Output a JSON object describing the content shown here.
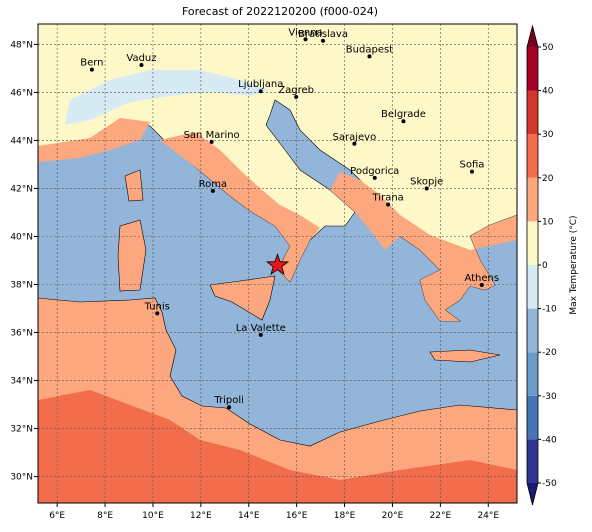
{
  "title": "Forecast of 2022120200 (f000-024)",
  "map": {
    "xlim": [
      5.2,
      25.2
    ],
    "ylim": [
      28.9,
      48.85
    ],
    "xticks": [
      {
        "value": 6,
        "label": "6°E"
      },
      {
        "value": 8,
        "label": "8°E"
      },
      {
        "value": 10,
        "label": "10°E"
      },
      {
        "value": 12,
        "label": "12°E"
      },
      {
        "value": 14,
        "label": "14°E"
      },
      {
        "value": 16,
        "label": "16°E"
      },
      {
        "value": 18,
        "label": "18°E"
      },
      {
        "value": 20,
        "label": "20°E"
      },
      {
        "value": 22,
        "label": "22°E"
      },
      {
        "value": 24,
        "label": "24°E"
      }
    ],
    "yticks": [
      {
        "value": 30,
        "label": "30°N"
      },
      {
        "value": 32,
        "label": "32°N"
      },
      {
        "value": 34,
        "label": "34°N"
      },
      {
        "value": 36,
        "label": "36°N"
      },
      {
        "value": 38,
        "label": "38°N"
      },
      {
        "value": 40,
        "label": "40°N"
      },
      {
        "value": 42,
        "label": "42°N"
      },
      {
        "value": 44,
        "label": "44°N"
      },
      {
        "value": 46,
        "label": "46°N"
      },
      {
        "value": 48,
        "label": "48°N"
      }
    ],
    "grid": true,
    "cities": [
      {
        "name": "Bern",
        "lon": 7.45,
        "lat": 46.95
      },
      {
        "name": "Vaduz",
        "lon": 9.52,
        "lat": 47.14
      },
      {
        "name": "Vienna",
        "lon": 16.37,
        "lat": 48.21
      },
      {
        "name": "Bratislava",
        "lon": 17.1,
        "lat": 48.15
      },
      {
        "name": "Budapest",
        "lon": 19.04,
        "lat": 47.5
      },
      {
        "name": "Ljubljana",
        "lon": 14.5,
        "lat": 46.05
      },
      {
        "name": "Zagreb",
        "lon": 15.98,
        "lat": 45.81
      },
      {
        "name": "Belgrade",
        "lon": 20.46,
        "lat": 44.8
      },
      {
        "name": "San Marino",
        "lon": 12.45,
        "lat": 43.94
      },
      {
        "name": "Sarajevo",
        "lon": 18.41,
        "lat": 43.86
      },
      {
        "name": "Podgorica",
        "lon": 19.26,
        "lat": 42.44
      },
      {
        "name": "Skopje",
        "lon": 21.43,
        "lat": 42.0
      },
      {
        "name": "Sofia",
        "lon": 23.32,
        "lat": 42.7
      },
      {
        "name": "Roma",
        "lon": 12.5,
        "lat": 41.9
      },
      {
        "name": "Tirana",
        "lon": 19.82,
        "lat": 41.33
      },
      {
        "name": "Athens",
        "lon": 23.73,
        "lat": 37.98
      },
      {
        "name": "Tunis",
        "lon": 10.18,
        "lat": 36.8
      },
      {
        "name": "La Valette",
        "lon": 14.5,
        "lat": 35.9
      },
      {
        "name": "Tripoli",
        "lon": 13.18,
        "lat": 32.89
      }
    ],
    "marker": {
      "lon": 15.2,
      "lat": 38.8,
      "color": "#e8141e"
    }
  },
  "colorbar": {
    "label": "Max Temperature (°C)",
    "lim": [
      -50,
      50
    ],
    "ticks": [
      -50,
      -40,
      -30,
      -20,
      -10,
      0,
      10,
      20,
      30,
      40,
      50
    ],
    "colors": [
      "#313695",
      "#4575b4",
      "#6b9bc9",
      "#93b5d9",
      "#d6ebf3",
      "#fef7c8",
      "#fca77d",
      "#f26d4b",
      "#d4352b",
      "#a50026"
    ],
    "under": "#1a1a75",
    "over": "#7a0020"
  }
}
